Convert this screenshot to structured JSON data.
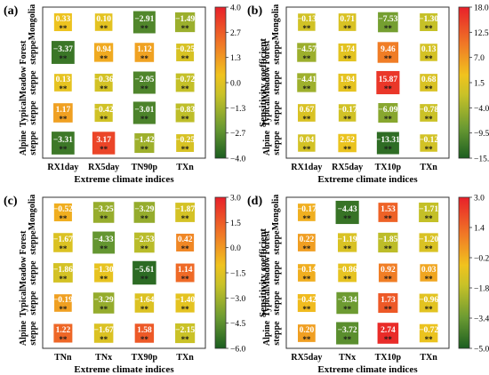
{
  "figure": {
    "colorbar_label": "Sensitivity coefficient",
    "significance_mark": "**"
  },
  "chart_data": [
    {
      "type": "heatmap",
      "panel_label": "(a)",
      "xlabel": "Extreme climate indices",
      "ylabel": "",
      "colorbar_label": "Sensitivity coefficient",
      "x_categories": [
        "RX1day",
        "RX5day",
        "TN90p",
        "TXn"
      ],
      "y_categories": [
        "Mongolia",
        "Forest",
        "Meadow",
        "Typical",
        "Alpine\nsteppe"
      ],
      "y_labels": [
        "Mongolia",
        "Forest\nsteppe",
        "Meadow\nsteppe",
        "Typical\nsteppe",
        "Alpine\nsteppe"
      ],
      "values": [
        [
          0.33,
          0.1,
          -2.91,
          -1.49
        ],
        [
          -3.37,
          0.94,
          1.12,
          -0.25
        ],
        [
          0.13,
          -0.36,
          -2.95,
          -0.72
        ],
        [
          1.17,
          -0.42,
          -3.01,
          -0.83
        ],
        [
          -3.31,
          3.17,
          -1.42,
          -0.25
        ]
      ],
      "significance": [
        [
          "**",
          "**",
          "**",
          "**"
        ],
        [
          "**",
          "**",
          "**",
          "**"
        ],
        [
          "**",
          "**",
          "**",
          "**"
        ],
        [
          "**",
          "**",
          "**",
          "**"
        ],
        [
          "**",
          "**",
          "**",
          "**"
        ]
      ],
      "colorbar": {
        "min": -4.0,
        "max": 4.0,
        "ticks": [
          "4.0",
          "2.7",
          "1.3",
          "0.0",
          "-1.3",
          "-2.7",
          "-4.0"
        ]
      }
    },
    {
      "type": "heatmap",
      "panel_label": "(b)",
      "xlabel": "Extreme climate indices",
      "colorbar_label": "Sensitivity coefficient",
      "x_categories": [
        "RX1day",
        "RX5day",
        "TX10p",
        "TXn"
      ],
      "y_labels": [
        "Mongolia",
        "Forest\nsteppe",
        "Meadow\nsteppe",
        "Typical\nsteppe",
        "Alpine\nsteppe"
      ],
      "values": [
        [
          -0.13,
          0.71,
          -7.53,
          -1.3
        ],
        [
          -4.57,
          1.74,
          9.46,
          0.13
        ],
        [
          -4.41,
          1.94,
          15.87,
          0.68
        ],
        [
          0.67,
          -0.17,
          -6.09,
          -0.78
        ],
        [
          0.04,
          2.52,
          -13.31,
          -0.12
        ]
      ],
      "significance": [
        [
          "**",
          "**",
          "**",
          "**"
        ],
        [
          "**",
          "**",
          "**",
          "**"
        ],
        [
          "**",
          "**",
          "**",
          "**"
        ],
        [
          "**",
          "**",
          "**",
          "**"
        ],
        [
          "**",
          "**",
          "**",
          "**"
        ]
      ],
      "colorbar": {
        "min": -15.0,
        "max": 18.0,
        "ticks": [
          "18.0",
          "12.5",
          "7.0",
          "1.5",
          "-4.0",
          "-9.5",
          "-15.0"
        ]
      }
    },
    {
      "type": "heatmap",
      "panel_label": "(c)",
      "xlabel": "Extreme climate indices",
      "colorbar_label": "Sensitivity coefficient",
      "x_categories": [
        "TNn",
        "TNx",
        "TX90p",
        "TXn"
      ],
      "y_labels": [
        "Mongolia",
        "Forest\nsteppe",
        "Meadow\nsteppe",
        "Typical\nsteppe",
        "Alpine\nsteppe"
      ],
      "values": [
        [
          -0.52,
          -3.25,
          -3.29,
          -1.87
        ],
        [
          -1.67,
          -4.33,
          -2.53,
          0.42
        ],
        [
          -1.86,
          -1.3,
          -5.61,
          1.14
        ],
        [
          -0.19,
          -3.29,
          -1.64,
          -1.4
        ],
        [
          1.22,
          -1.67,
          1.58,
          -2.15
        ]
      ],
      "significance": [
        [
          "**",
          "**",
          "**",
          "**"
        ],
        [
          "**",
          "**",
          "**",
          "**"
        ],
        [
          "**",
          "**",
          "**",
          "**"
        ],
        [
          "**",
          "**",
          "**",
          "**"
        ],
        [
          "**",
          "**",
          "**",
          "**"
        ]
      ],
      "colorbar": {
        "min": -6.0,
        "max": 3.0,
        "ticks": [
          "3.0",
          "1.5",
          "0.0",
          "-1.5",
          "-3.0",
          "-4.5",
          "-6.0"
        ]
      }
    },
    {
      "type": "heatmap",
      "panel_label": "(d)",
      "xlabel": "Extreme climate indices",
      "colorbar_label": "Sensitivity coefficient",
      "x_categories": [
        "RX5day",
        "TNx",
        "TX10p",
        "TXn"
      ],
      "y_labels": [
        "Mongolia",
        "Forest\nsteppe",
        "Meadow\nsteppe",
        "Typical\nsteppe",
        "Alpine\nsteppe"
      ],
      "values": [
        [
          -0.17,
          -4.43,
          1.53,
          -1.71
        ],
        [
          0.22,
          -1.19,
          -1.85,
          -1.2
        ],
        [
          -0.14,
          -0.86,
          0.92,
          0.03
        ],
        [
          -0.42,
          -3.34,
          1.73,
          -0.96
        ],
        [
          0.2,
          -3.72,
          2.74,
          -0.72
        ]
      ],
      "significance": [
        [
          "**",
          "**",
          "**",
          "**"
        ],
        [
          "**",
          "**",
          "**",
          "**"
        ],
        [
          "**",
          "**",
          "**",
          "**"
        ],
        [
          "**",
          "**",
          "**",
          "**"
        ],
        [
          "**",
          "**",
          "**",
          "**"
        ]
      ],
      "colorbar": {
        "min": -5.0,
        "max": 3.0,
        "ticks": [
          "3.0",
          "1.4",
          "-0.2",
          "-1.8",
          "-3.4",
          "-5.0"
        ]
      }
    }
  ]
}
